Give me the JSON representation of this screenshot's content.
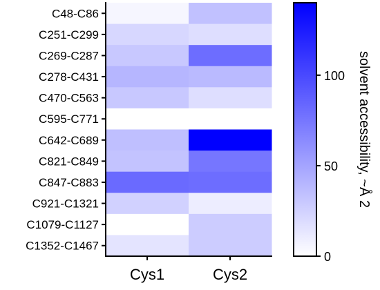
{
  "chart_data": {
    "type": "heatmap",
    "rows": [
      "C48-C86",
      "C251-C299",
      "C269-C287",
      "C278-C431",
      "C470-C563",
      "C595-C771",
      "C642-C689",
      "C821-C849",
      "C847-C883",
      "C921-C1321",
      "C1079-C1127",
      "C1352-C1467"
    ],
    "columns": [
      "Cys1",
      "Cys2"
    ],
    "values": [
      [
        5,
        34
      ],
      [
        22,
        18
      ],
      [
        30,
        80
      ],
      [
        40,
        38
      ],
      [
        30,
        18
      ],
      [
        0,
        0
      ],
      [
        35,
        140
      ],
      [
        33,
        75
      ],
      [
        82,
        80
      ],
      [
        25,
        10
      ],
      [
        0,
        28
      ],
      [
        15,
        28
      ]
    ],
    "colorbar": {
      "title": "solvent accessibility, ~Å 2",
      "min": 0,
      "max": 140,
      "ticks": [
        0,
        50,
        100
      ],
      "color_low": "#ffffff",
      "color_high": "#0000ff"
    }
  }
}
